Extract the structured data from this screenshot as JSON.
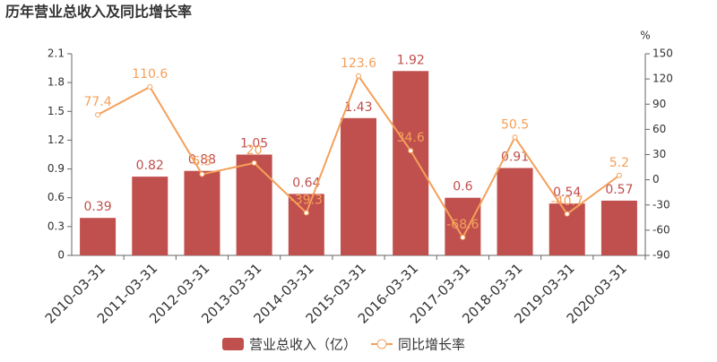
{
  "chart_data": {
    "type": "bar_line",
    "title": "历年营业总收入及同比增长率",
    "y2_unit": "%",
    "categories": [
      "2010-03-31",
      "2011-03-31",
      "2012-03-31",
      "2013-03-31",
      "2014-03-31",
      "2015-03-31",
      "2016-03-31",
      "2017-03-31",
      "2018-03-31",
      "2019-03-31",
      "2020-03-31"
    ],
    "series": [
      {
        "name": "营业总收入（亿）",
        "type": "bar",
        "color": "#c0504d",
        "values": [
          0.39,
          0.82,
          0.88,
          1.05,
          0.64,
          1.43,
          1.92,
          0.6,
          0.91,
          0.54,
          0.57
        ]
      },
      {
        "name": "同比增长率",
        "type": "line",
        "axis": "y2",
        "color": "#f4a05a",
        "values": [
          77.4,
          110.6,
          6.5,
          20,
          -39.3,
          123.6,
          34.6,
          -68.6,
          50.5,
          -40.7,
          5.2
        ]
      }
    ],
    "ylim": [
      0,
      2.1
    ],
    "yticks": [
      0,
      0.3,
      0.6,
      0.9,
      1.2,
      1.5,
      1.8,
      2.1
    ],
    "y2lim": [
      -90,
      150
    ],
    "y2ticks": [
      -90,
      -60,
      -30,
      0,
      30,
      60,
      90,
      120,
      150
    ]
  }
}
